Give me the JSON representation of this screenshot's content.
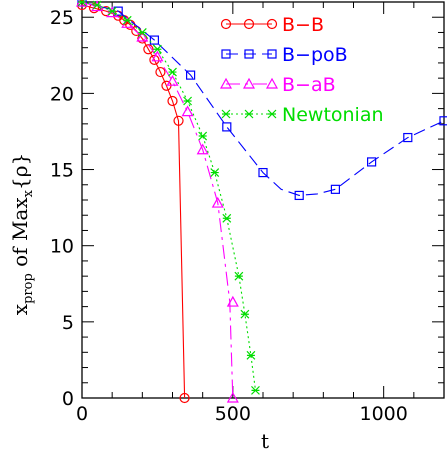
{
  "chart_data": {
    "type": "line",
    "title": "",
    "xlabel": "t",
    "ylabel": "x_prop of Max_x {rho}",
    "ylabel_parts": {
      "main": "x",
      "sub": "prop",
      "mid": " of Max",
      "sub2": "x",
      "tail": "{ρ}"
    },
    "xlim": [
      0,
      1200
    ],
    "ylim": [
      0,
      26
    ],
    "x_ticks": [
      0,
      500,
      1000
    ],
    "y_ticks": [
      0,
      5,
      10,
      15,
      20,
      25
    ],
    "grid": false,
    "legend_position": "top-right",
    "series": [
      {
        "name": "B−B",
        "color": "#ff0000",
        "dash": "",
        "marker": "circle",
        "x": [
          0,
          40,
          80,
          120,
          140,
          160,
          180,
          200,
          220,
          240,
          260,
          280,
          300,
          320,
          340
        ],
        "y": [
          25.8,
          25.6,
          25.4,
          25.1,
          24.8,
          24.5,
          24.1,
          23.6,
          22.9,
          22.2,
          21.4,
          20.5,
          19.5,
          18.2,
          0.0
        ]
      },
      {
        "name": "B−poB",
        "color": "#0000ff",
        "dash": "12,6",
        "marker": "square",
        "x": [
          0,
          120,
          240,
          360,
          480,
          600,
          720,
          840,
          960,
          1080,
          1200
        ],
        "y": [
          26.0,
          25.4,
          23.5,
          21.2,
          17.8,
          14.8,
          13.3,
          13.7,
          15.5,
          17.1,
          18.2
        ],
        "curve_x": [
          0,
          120,
          240,
          360,
          480,
          600,
          660,
          720,
          780,
          840,
          960,
          1080,
          1200
        ],
        "curve_y": [
          26.0,
          25.4,
          23.5,
          21.2,
          17.8,
          14.8,
          13.7,
          13.3,
          13.4,
          13.7,
          15.5,
          17.1,
          18.2
        ]
      },
      {
        "name": "B−aB",
        "color": "#ff00ff",
        "dash": "14,5,3,5",
        "marker": "triangle",
        "x": [
          0,
          50,
          100,
          150,
          200,
          250,
          300,
          350,
          400,
          450,
          500
        ],
        "y": [
          26.0,
          25.7,
          25.3,
          24.6,
          23.7,
          22.4,
          20.8,
          18.8,
          16.3,
          12.8,
          6.3
        ],
        "curve_x": [
          0,
          50,
          100,
          150,
          200,
          250,
          300,
          350,
          400,
          450,
          490,
          500
        ],
        "curve_y": [
          26.0,
          25.7,
          25.3,
          24.6,
          23.7,
          22.4,
          20.8,
          18.8,
          16.3,
          12.8,
          6.3,
          0.0
        ],
        "extra_markers_x": [
          500
        ],
        "extra_markers_y": [
          0.0
        ]
      },
      {
        "name": "Newtonian",
        "color": "#00dd00",
        "dash": "2,3",
        "marker": "star",
        "x": [
          0,
          50,
          100,
          150,
          200,
          250,
          300,
          350,
          400,
          440,
          480,
          520,
          540,
          560,
          575
        ],
        "y": [
          26.0,
          25.8,
          25.4,
          24.8,
          24.0,
          22.9,
          21.4,
          19.5,
          17.2,
          14.8,
          11.8,
          8.0,
          5.5,
          2.8,
          0.5
        ]
      }
    ]
  }
}
